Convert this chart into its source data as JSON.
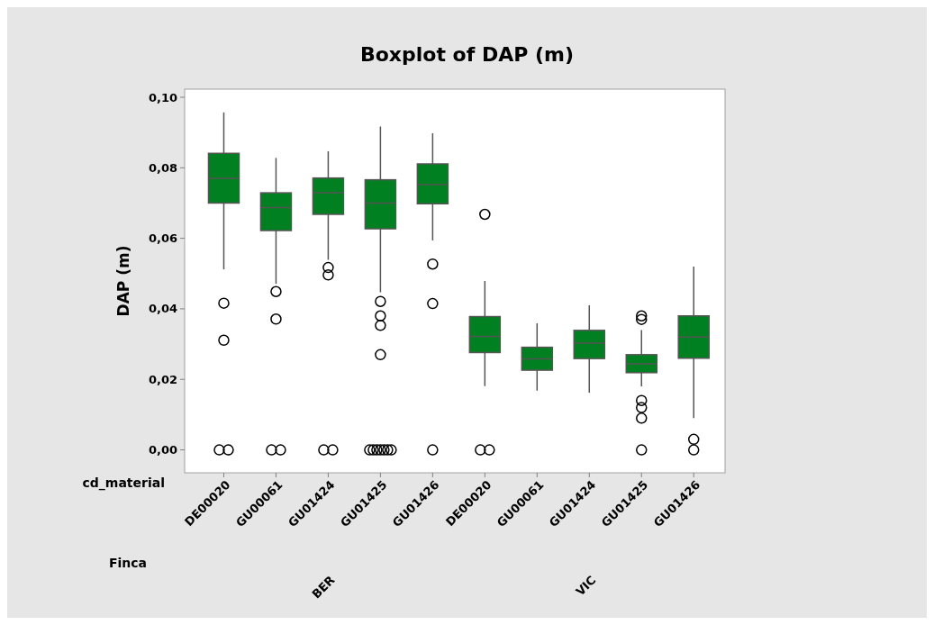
{
  "chart_data": {
    "type": "box",
    "title": "Boxplot of DAP (m)",
    "ylabel": "DAP (m)",
    "xlabel": "cd_material",
    "categories": [
      "DE00020",
      "GU00061",
      "GU01424",
      "GU01425",
      "GU01426",
      "DE00020",
      "GU00061",
      "GU01424",
      "GU01425",
      "GU01426"
    ],
    "annotations": [
      "Finca",
      "BER",
      "VIC"
    ],
    "color": "#008020",
    "ylim": [
      -0.0065,
      0.1023
    ],
    "yticks": [
      {
        "value": 0,
        "label": "0,00"
      },
      {
        "value": 0.02,
        "label": "0,02"
      },
      {
        "value": 0.04,
        "label": "0,04"
      },
      {
        "value": 0.06,
        "label": "0,06"
      },
      {
        "value": 0.08,
        "label": "0,08"
      },
      {
        "value": 0.1,
        "label": "0,10"
      }
    ],
    "grid": false,
    "marker": "circle",
    "boxes": [
      {
        "low": 0.0512,
        "q1": 0.07,
        "median": 0.077,
        "q3": 0.0841,
        "high": 0.0957,
        "outliers": [
          0.0416,
          0.0311,
          0,
          0
        ]
      },
      {
        "low": 0.0471,
        "q1": 0.0622,
        "median": 0.0687,
        "q3": 0.0729,
        "high": 0.0828,
        "outliers": [
          0.0449,
          0.0371,
          0,
          0
        ]
      },
      {
        "low": 0.0539,
        "q1": 0.0668,
        "median": 0.0729,
        "q3": 0.0771,
        "high": 0.0847,
        "outliers": [
          0.0517,
          0.0496,
          0,
          0
        ]
      },
      {
        "low": 0.0447,
        "q1": 0.0627,
        "median": 0.07,
        "q3": 0.0766,
        "high": 0.0917,
        "outliers": [
          0.0421,
          0.038,
          0.0353,
          0.027,
          0,
          0,
          0,
          0,
          0,
          0,
          0
        ]
      },
      {
        "low": 0.0594,
        "q1": 0.0698,
        "median": 0.0752,
        "q3": 0.0811,
        "high": 0.0898,
        "outliers": [
          0.0527,
          0.0415,
          0
        ]
      },
      {
        "low": 0.0181,
        "q1": 0.0276,
        "median": 0.0322,
        "q3": 0.0378,
        "high": 0.0479,
        "outliers": [
          0.0668,
          0,
          0
        ]
      },
      {
        "low": 0.0168,
        "q1": 0.0226,
        "median": 0.0258,
        "q3": 0.0291,
        "high": 0.0359
      },
      {
        "low": 0.0162,
        "q1": 0.0259,
        "median": 0.0303,
        "q3": 0.0339,
        "high": 0.041
      },
      {
        "low": 0.018,
        "q1": 0.0219,
        "median": 0.0244,
        "q3": 0.027,
        "high": 0.034,
        "outliers": [
          0.038,
          0.037,
          0.014,
          0.012,
          0.009,
          0
        ]
      },
      {
        "low": 0.009,
        "q1": 0.026,
        "median": 0.032,
        "q3": 0.038,
        "high": 0.052,
        "outliers": [
          0.003,
          0
        ]
      }
    ]
  }
}
